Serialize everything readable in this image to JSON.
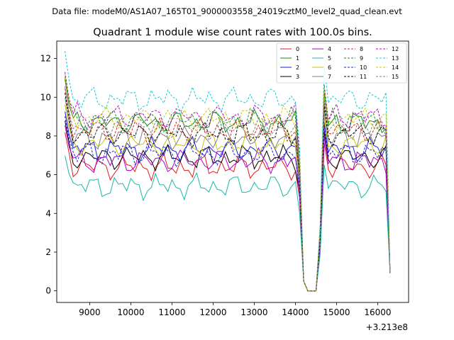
{
  "header": {
    "data_file": "Data file: modeM0/AS1A07_165T01_9000003558_24019cztM0_level2_quad_clean.evt"
  },
  "chart_data": {
    "type": "line",
    "title": "Quadrant 1 module wise count rates with 100.0s bins.",
    "xlabel": "",
    "ylabel": "",
    "x_offset_label": "+3.213e8",
    "xlim": [
      8200,
      16750
    ],
    "ylim": [
      -0.6,
      12.9
    ],
    "x_ticks": [
      9000,
      10000,
      11000,
      12000,
      13000,
      14000,
      15000,
      16000
    ],
    "y_ticks": [
      0,
      2,
      4,
      6,
      8,
      10,
      12
    ],
    "grid": false,
    "legend_position": "top-right",
    "x": [
      8400,
      8500,
      8600,
      8700,
      8800,
      8900,
      9000,
      9100,
      9200,
      9300,
      9400,
      9500,
      9600,
      9700,
      9800,
      9900,
      10000,
      10100,
      10200,
      10300,
      10400,
      10500,
      10600,
      10700,
      10800,
      10900,
      11000,
      11100,
      11200,
      11300,
      11400,
      11500,
      11600,
      11700,
      11800,
      11900,
      12000,
      12100,
      12200,
      12300,
      12400,
      12500,
      12600,
      12700,
      12800,
      12900,
      13000,
      13100,
      13200,
      13300,
      13400,
      13500,
      13600,
      13700,
      13800,
      13900,
      14000,
      14100,
      14200,
      14300,
      14400,
      14500,
      14600,
      14700,
      14800,
      14900,
      15000,
      15100,
      15200,
      15300,
      15400,
      15500,
      15600,
      15700,
      15800,
      15900,
      16000,
      16100,
      16200,
      16300
    ],
    "series": [
      {
        "name": "0",
        "color": "#e41a1c",
        "dash": false,
        "base": 6.4
      },
      {
        "name": "1",
        "color": "#1a8a1a",
        "dash": false,
        "base": 8.7
      },
      {
        "name": "2",
        "color": "#1f1fe0",
        "dash": false,
        "base": 7.3
      },
      {
        "name": "3",
        "color": "#000000",
        "dash": false,
        "base": 6.9
      },
      {
        "name": "4",
        "color": "#b000c8",
        "dash": false,
        "base": 6.7
      },
      {
        "name": "5",
        "color": "#17b8a8",
        "dash": false,
        "base": 5.4
      },
      {
        "name": "6",
        "color": "#c8c800",
        "dash": false,
        "base": 7.6
      },
      {
        "name": "7",
        "color": "#808080",
        "dash": false,
        "base": 7.9
      },
      {
        "name": "8",
        "color": "#e41a1c",
        "dash": true,
        "base": 8.3
      },
      {
        "name": "9",
        "color": "#1a8a1a",
        "dash": true,
        "base": 8.8
      },
      {
        "name": "10",
        "color": "#1f1fe0",
        "dash": true,
        "base": 7.1
      },
      {
        "name": "11",
        "color": "#000000",
        "dash": true,
        "base": 8.1
      },
      {
        "name": "12",
        "color": "#b000c8",
        "dash": true,
        "base": 9.0
      },
      {
        "name": "13",
        "color": "#17c8d0",
        "dash": true,
        "base": 9.9
      },
      {
        "name": "14",
        "color": "#c8c800",
        "dash": true,
        "base": 8.9
      },
      {
        "name": "15",
        "color": "#808080",
        "dash": true,
        "base": 8.4
      }
    ]
  }
}
